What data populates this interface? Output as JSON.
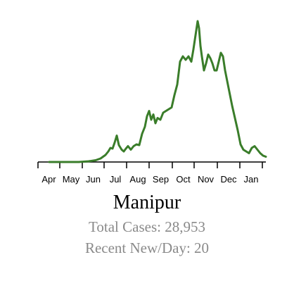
{
  "chart_data": {
    "type": "line",
    "title": "Manipur",
    "color": "#3a7d2a",
    "x_tick_labels": [
      "Apr",
      "May",
      "Jun",
      "Jul",
      "Aug",
      "Sep",
      "Oct",
      "Nov",
      "Dec",
      "Jan"
    ],
    "ylim": [
      0,
      380
    ],
    "series": [
      {
        "x": [
          "2020-03-20",
          "2020-04-01",
          "2020-04-15",
          "2020-05-01",
          "2020-05-15",
          "2020-05-25",
          "2020-06-01",
          "2020-06-08",
          "2020-06-12",
          "2020-06-15",
          "2020-06-18",
          "2020-06-21",
          "2020-06-24",
          "2020-06-27",
          "2020-07-01",
          "2020-07-04",
          "2020-07-07",
          "2020-07-10",
          "2020-07-14",
          "2020-07-18",
          "2020-07-22",
          "2020-07-26",
          "2020-07-30",
          "2020-08-03",
          "2020-08-06",
          "2020-08-09",
          "2020-08-12",
          "2020-08-15",
          "2020-08-18",
          "2020-08-21",
          "2020-08-25",
          "2020-08-29",
          "2020-09-02",
          "2020-09-06",
          "2020-09-10",
          "2020-09-14",
          "2020-09-18",
          "2020-09-22",
          "2020-09-26",
          "2020-09-30",
          "2020-10-04",
          "2020-10-08",
          "2020-10-11",
          "2020-10-14",
          "2020-10-17",
          "2020-10-19",
          "2020-10-21",
          "2020-10-23",
          "2020-10-26",
          "2020-10-29",
          "2020-11-01",
          "2020-11-04",
          "2020-11-07",
          "2020-11-10",
          "2020-11-13",
          "2020-11-16",
          "2020-11-19",
          "2020-11-22",
          "2020-11-25",
          "2020-11-28",
          "2020-12-01",
          "2020-12-05",
          "2020-12-09",
          "2020-12-13",
          "2020-12-17",
          "2020-12-21",
          "2020-12-25",
          "2020-12-29",
          "2021-01-02",
          "2021-01-06",
          "2021-01-10",
          "2021-01-14",
          "2021-01-18",
          "2021-01-22"
        ],
        "values": [
          0,
          0,
          0,
          0,
          2,
          5,
          10,
          20,
          30,
          40,
          38,
          55,
          75,
          48,
          35,
          30,
          38,
          45,
          35,
          45,
          50,
          48,
          80,
          100,
          130,
          145,
          120,
          135,
          110,
          125,
          120,
          140,
          145,
          150,
          155,
          190,
          220,
          285,
          300,
          290,
          300,
          285,
          320,
          360,
          400,
          380,
          330,
          300,
          260,
          280,
          305,
          295,
          280,
          260,
          260,
          285,
          310,
          300,
          260,
          230,
          200,
          160,
          125,
          90,
          50,
          35,
          30,
          25,
          40,
          45,
          35,
          25,
          18,
          15
        ]
      }
    ]
  },
  "labels": {
    "title": "Manipur",
    "total_cases": "Total Cases: 28,953",
    "recent_new": "Recent New/Day: 20"
  }
}
